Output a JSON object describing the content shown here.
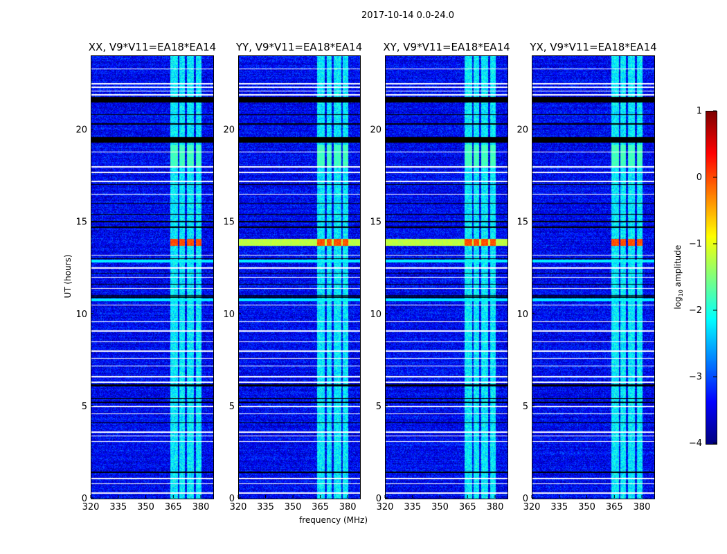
{
  "chart_data": {
    "type": "heatmap",
    "title": "2017-10-14 0.0-24.0",
    "xlabel": "frequency (MHz)",
    "ylabel": "UT (hours)",
    "xlim": [
      320,
      386.4
    ],
    "ylim": [
      0,
      24
    ],
    "xticks": [
      "320",
      "335",
      "350",
      "365",
      "380"
    ],
    "xtick_values": [
      320,
      335,
      350,
      365,
      380
    ],
    "yticks": [
      "0",
      "5",
      "10",
      "15",
      "20"
    ],
    "ytick_values": [
      0,
      5,
      10,
      15,
      20
    ],
    "colorbar": {
      "label_main": "log",
      "label_sub": "10",
      "label_tail": " amplitude",
      "range": [
        -4,
        1
      ],
      "ticks": [
        "1",
        "0",
        "−1",
        "−2",
        "−3",
        "−4"
      ],
      "tick_values": [
        1,
        0,
        -1,
        -2,
        -3,
        -4
      ],
      "colormap": "jet"
    },
    "panels": [
      {
        "title": "XX, V9*V11=EA18*EA14",
        "event_full_width": false
      },
      {
        "title": "YY, V9*V11=EA18*EA14",
        "event_full_width": true
      },
      {
        "title": "XY, V9*V11=EA18*EA14",
        "event_full_width": true
      },
      {
        "title": "YX, V9*V11=EA18*EA14",
        "event_full_width": false
      }
    ],
    "background_log_amplitude": -3.4,
    "rfi_bands_mhz": [
      [
        363,
        367
      ],
      [
        368,
        371
      ],
      [
        372,
        376
      ],
      [
        377,
        380
      ]
    ],
    "rfi_log_amplitude": -2.2,
    "strong_rfi_hours": [
      18.0,
      19.2
    ],
    "event_hours": [
      13.7,
      14.1
    ],
    "event_log_amplitude": 0.0,
    "flagged_white_hours": [
      23.3,
      22.5,
      22.3,
      22.1,
      21.9,
      18.8,
      18.0,
      17.7,
      17.2,
      16.5,
      13.2,
      12.5,
      12.0,
      11.4,
      10.5,
      9.6,
      9.1,
      8.5,
      8.0,
      7.6,
      7.2,
      6.6,
      6.3,
      5.0,
      4.6,
      3.6,
      3.4,
      3.1,
      1.1,
      0.8,
      0.3
    ],
    "flagged_black_hours": [
      [
        21.5,
        21.8
      ],
      [
        19.3,
        19.6
      ],
      [
        20.8,
        20.85
      ],
      [
        20.3,
        20.35
      ],
      [
        17.0,
        17.05
      ],
      [
        16.0,
        16.05
      ],
      [
        15.4,
        15.45
      ],
      [
        15.0,
        15.05
      ],
      [
        14.7,
        14.75
      ],
      [
        13.0,
        13.05
      ],
      [
        12.2,
        12.25
      ],
      [
        11.6,
        11.65
      ],
      [
        11.0,
        11.05
      ],
      [
        10.9,
        10.95
      ],
      [
        6.1,
        6.2
      ],
      [
        5.4,
        5.45
      ],
      [
        5.2,
        5.25
      ],
      [
        4.1,
        4.15
      ],
      [
        1.4,
        1.45
      ]
    ]
  }
}
